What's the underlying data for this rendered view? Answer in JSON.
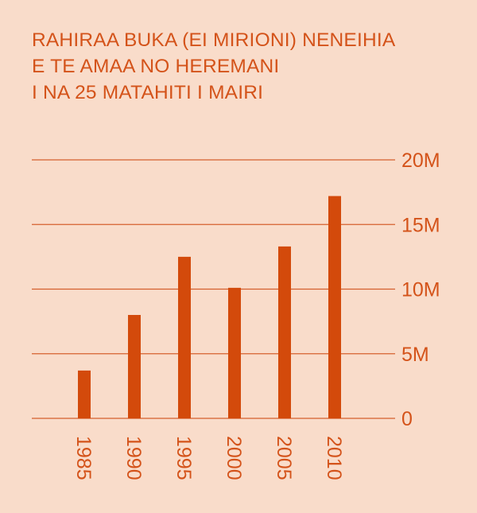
{
  "chart_data": {
    "type": "bar",
    "title_lines": [
      "RAHIRAA BUKA (EI MIRIONI) NENEIHIA",
      "E TE AMAA NO HEREMANI",
      "I NA 25 MATAHITI I MAIRI"
    ],
    "categories": [
      "1985",
      "1990",
      "1995",
      "2000",
      "2005",
      "2010"
    ],
    "values": [
      3.7,
      8.0,
      12.5,
      10.1,
      13.3,
      17.2
    ],
    "unit": "millions",
    "ylim": [
      0,
      20
    ],
    "yticks": [
      0,
      5,
      10,
      15,
      20
    ],
    "ytick_labels": [
      "0",
      "5M",
      "10M",
      "15M",
      "20M"
    ],
    "xlabel": "",
    "ylabel": "",
    "grid": true,
    "legend": "none",
    "colors": {
      "bar": "#d34a0b",
      "grid": "#d5602e",
      "text": "#d4531a",
      "background": "#f9dcca"
    }
  }
}
